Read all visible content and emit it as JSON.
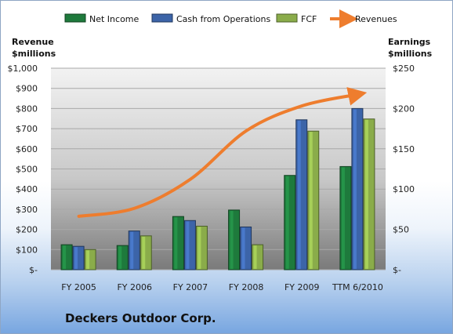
{
  "company_label": "Deckers Outdoor Corp.",
  "chart_data": {
    "type": "bar",
    "categories": [
      "FY 2005",
      "FY 2006",
      "FY 2007",
      "FY 2008",
      "FY 2009",
      "TTM 6/2010"
    ],
    "left_axis": {
      "title_line1": "Revenue",
      "title_line2": "$millions",
      "ylim": [
        0,
        1000
      ],
      "tick_values": [
        0,
        100,
        200,
        300,
        400,
        500,
        600,
        700,
        800,
        900,
        1000
      ],
      "tick_labels": [
        "$-",
        "$100",
        "$200",
        "$300",
        "$400",
        "$500",
        "$600",
        "$700",
        "$800",
        "$900",
        "$1,000"
      ]
    },
    "right_axis": {
      "title_line1": "Earnings",
      "title_line2": "$millions",
      "ylim": [
        0,
        250
      ],
      "tick_values": [
        0,
        50,
        100,
        150,
        200,
        250
      ],
      "tick_labels": [
        "$-",
        "$50",
        "$100",
        "$150",
        "$200",
        "$250"
      ]
    },
    "series": [
      {
        "name": "Net Income",
        "kind": "bar",
        "axis": "right",
        "color": "#1e7a3c",
        "values": [
          31,
          30,
          66,
          74,
          117,
          128
        ]
      },
      {
        "name": "Cash from Operations",
        "kind": "bar",
        "axis": "right",
        "color": "#3c64a8",
        "values": [
          29,
          48,
          61,
          53,
          186,
          200
        ]
      },
      {
        "name": "FCF",
        "kind": "bar",
        "axis": "right",
        "color": "#8aac4a",
        "values": [
          25,
          42,
          54,
          31,
          172,
          187
        ]
      },
      {
        "name": "Revenues",
        "kind": "line",
        "axis": "left",
        "color": "#ee7d2e",
        "values": [
          265,
          305,
          449,
          689,
          813,
          870
        ]
      }
    ],
    "grid": true,
    "legend_position": "top"
  }
}
